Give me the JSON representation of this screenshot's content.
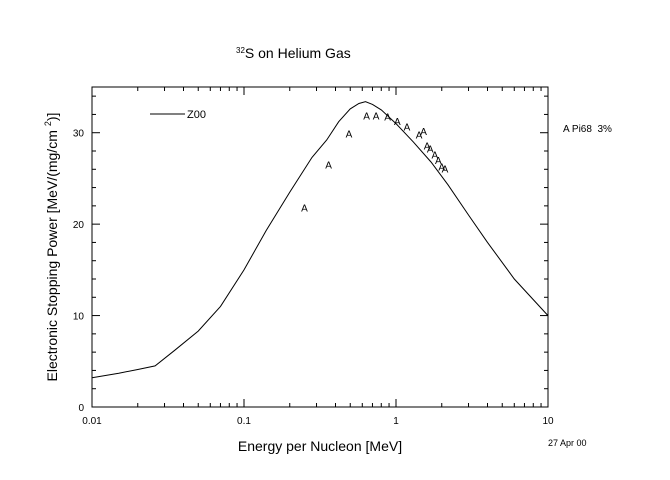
{
  "chart_data": {
    "type": "line",
    "title": {
      "superscript": "32",
      "text": "S on Helium Gas"
    },
    "xlabel": "Energy per Nucleon [MeV]",
    "ylabel": {
      "text": "Electronic Stopping Power [MeV/(mg/cm",
      "sup": "2",
      "end": ")]"
    },
    "xscale": "log",
    "xlim": [
      0.01,
      10
    ],
    "ylim": [
      0,
      35
    ],
    "xticks": [
      {
        "value": 0.01,
        "label": "0.01"
      },
      {
        "value": 0.1,
        "label": "0.1"
      },
      {
        "value": 1,
        "label": "1"
      },
      {
        "value": 10,
        "label": "10"
      }
    ],
    "yticks": [
      {
        "value": 0,
        "label": "0"
      },
      {
        "value": 10,
        "label": "10"
      },
      {
        "value": 20,
        "label": "20"
      },
      {
        "value": 30,
        "label": "30"
      }
    ],
    "legend": {
      "position": "top-left",
      "label": "Z00"
    },
    "series": [
      {
        "name": "Z00",
        "style": "line",
        "x": [
          0.01,
          0.015,
          0.02,
          0.026,
          0.035,
          0.05,
          0.07,
          0.1,
          0.14,
          0.2,
          0.28,
          0.35,
          0.42,
          0.5,
          0.57,
          0.63,
          0.7,
          0.8,
          1.0,
          1.3,
          1.7,
          2.2,
          3.0,
          4.0,
          6.0,
          10.0
        ],
        "y": [
          3.2,
          3.7,
          4.1,
          4.5,
          6.2,
          8.3,
          11.0,
          15.0,
          19.3,
          23.5,
          27.3,
          29.2,
          31.2,
          32.6,
          33.2,
          33.4,
          33.1,
          32.5,
          31.0,
          29.0,
          26.8,
          24.3,
          21.0,
          18.0,
          14.0,
          10.0
        ]
      },
      {
        "name": "A",
        "style": "marker",
        "marker": "A",
        "x": [
          0.25,
          0.36,
          0.49,
          0.64,
          0.74,
          0.88,
          1.02,
          1.18,
          1.42,
          1.52,
          1.6,
          1.68,
          1.8,
          1.9,
          2.0,
          2.1
        ],
        "y": [
          21.8,
          26.5,
          29.9,
          31.9,
          31.9,
          31.8,
          31.3,
          30.7,
          29.8,
          30.2,
          28.6,
          28.3,
          27.6,
          27.0,
          26.3,
          26.1
        ]
      }
    ],
    "annotations": [
      {
        "name": "data-source-note",
        "text": "A Pi68  3%"
      },
      {
        "name": "date-stamp",
        "text": "27 Apr 00"
      }
    ]
  }
}
